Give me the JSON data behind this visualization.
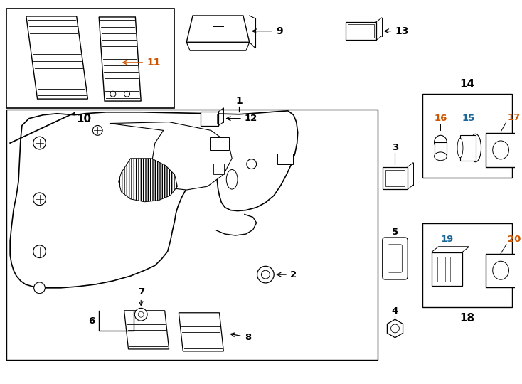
{
  "bg_color": "#ffffff",
  "line_color": "#000000",
  "orange": "#cc5500",
  "blue": "#1a6699",
  "fig_width": 7.34,
  "fig_height": 5.4
}
